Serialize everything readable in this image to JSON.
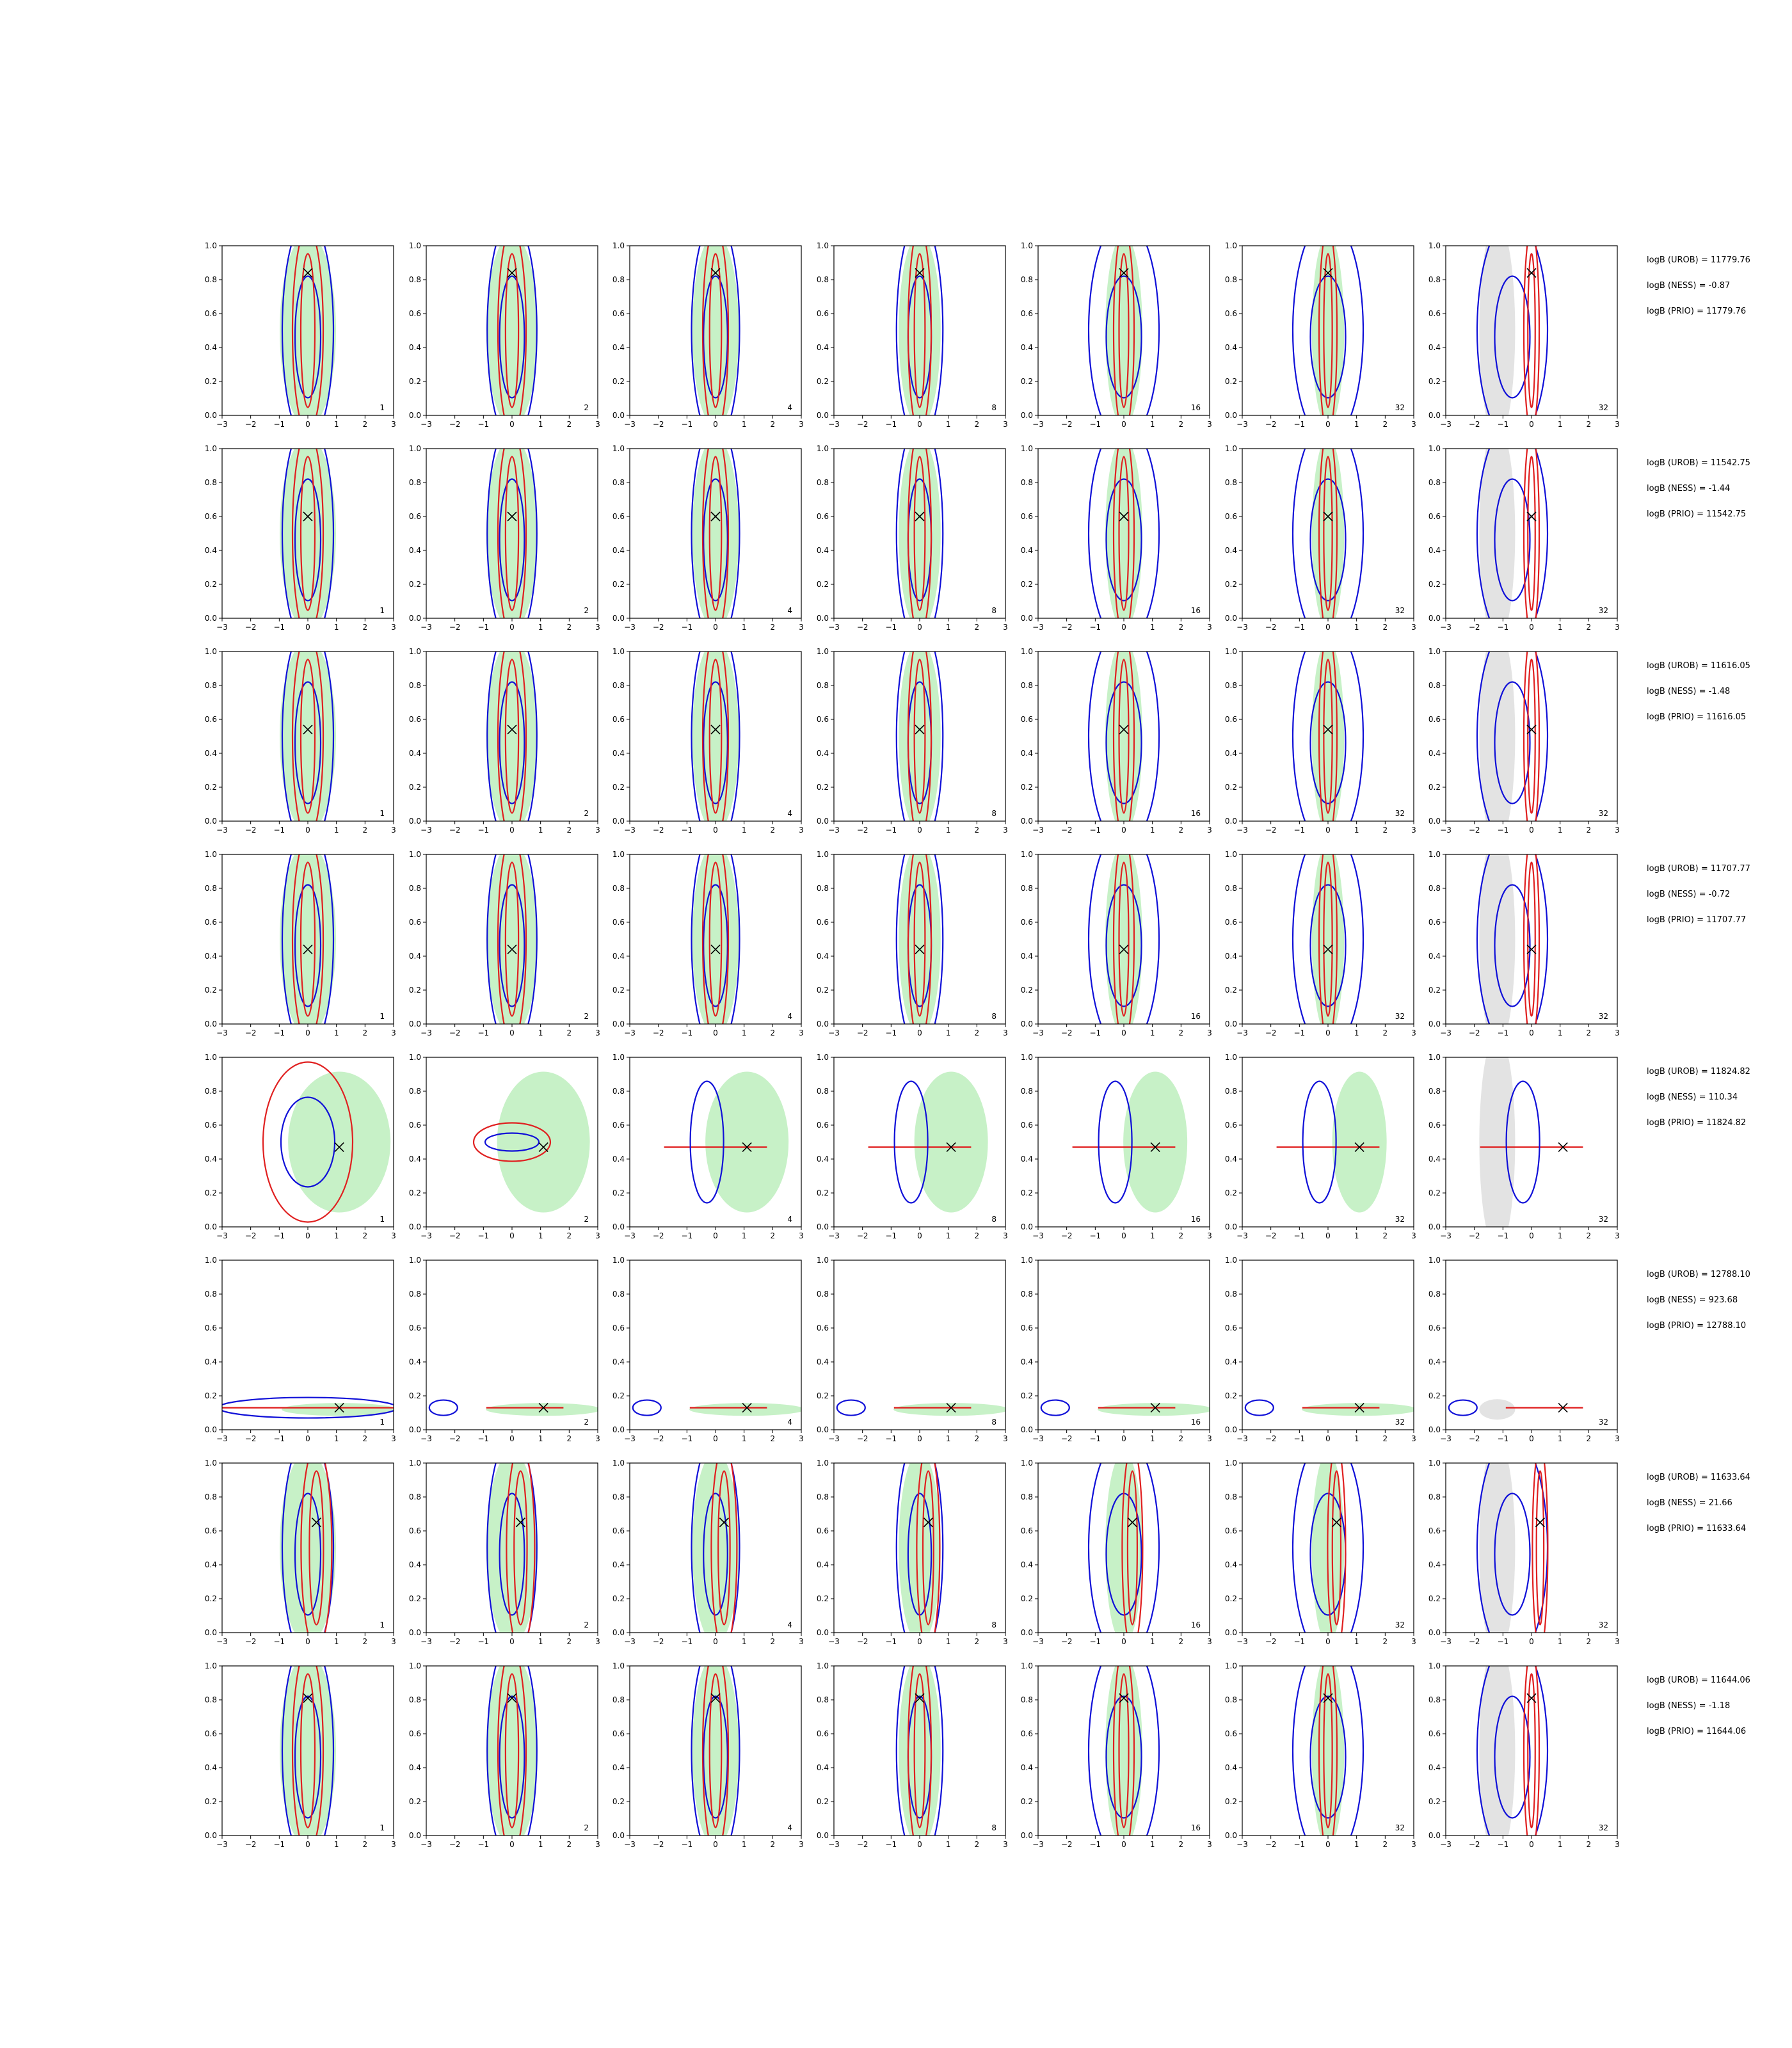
{
  "chart_data": {
    "type": "contour",
    "grid": {
      "rows": 8,
      "cols": 7
    },
    "xlim": [
      -3,
      3
    ],
    "ylim": [
      0,
      1
    ],
    "xticks": [
      "−3",
      "−2",
      "−1",
      "0",
      "1",
      "2",
      "3"
    ],
    "yticks": [
      "0.0",
      "0.2",
      "0.4",
      "0.6",
      "0.8",
      "1.0"
    ],
    "panel_labels": [
      "1",
      "2",
      "4",
      "8",
      "16",
      "32",
      "32"
    ],
    "colors": {
      "blue": "#1010d8",
      "red": "#e02020",
      "green": "#bdeebd",
      "gray": "#dcdcdc",
      "axis": "#000000"
    },
    "rows": [
      {
        "marker": [
          0.0,
          0.84
        ],
        "spread": "wide",
        "stats": [
          "logB (UROB) = 11779.76",
          "logB (NESS) = -0.87",
          "logB (PRIO) = 11779.76"
        ]
      },
      {
        "marker": [
          0.0,
          0.6
        ],
        "spread": "wide",
        "stats": [
          "logB (UROB) = 11542.75",
          "logB (NESS) = -1.44",
          "logB (PRIO) = 11542.75"
        ]
      },
      {
        "marker": [
          0.0,
          0.54
        ],
        "spread": "wide",
        "stats": [
          "logB (UROB) = 11616.05",
          "logB (NESS) = -1.48",
          "logB (PRIO) = 11616.05"
        ]
      },
      {
        "marker": [
          0.0,
          0.44
        ],
        "spread": "wide",
        "stats": [
          "logB (UROB) = 11707.77",
          "logB (NESS) = -0.72",
          "logB (PRIO) = 11707.77"
        ]
      },
      {
        "marker": [
          1.1,
          0.47
        ],
        "spread": "compact",
        "stats": [
          "logB (UROB) = 11824.82",
          "logB (NESS) = 110.34",
          "logB (PRIO) = 11824.82"
        ]
      },
      {
        "marker": [
          1.1,
          0.13
        ],
        "spread": "flat",
        "stats": [
          "logB (UROB) = 12788.10",
          "logB (NESS) = 923.68",
          "logB (PRIO) = 12788.10"
        ]
      },
      {
        "marker": [
          0.3,
          0.65
        ],
        "spread": "wide",
        "stats": [
          "logB (UROB) = 11633.64",
          "logB (NESS) = 21.66",
          "logB (PRIO) = 11633.64"
        ]
      },
      {
        "marker": [
          0.0,
          0.81
        ],
        "spread": "wide",
        "stats": [
          "logB (UROB) = 11644.06",
          "logB (NESS) = -1.18",
          "logB (PRIO) = 11644.06"
        ]
      }
    ]
  }
}
